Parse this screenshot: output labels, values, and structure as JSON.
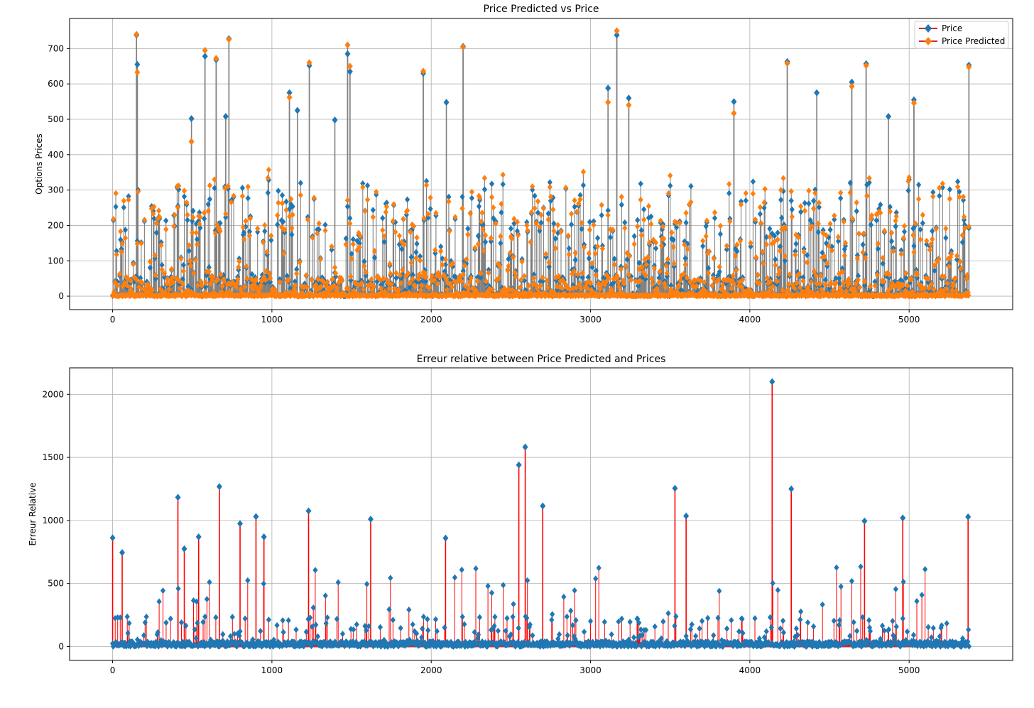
{
  "colors": {
    "price": "#1f77b4",
    "predicted": "#ff7f0e",
    "stem_top": "#808080",
    "stem_bottom": "#ff0000",
    "baseline": "#d62728",
    "grid": "#b0b0b0"
  },
  "chart_data": [
    {
      "type": "scatter",
      "subtype": "stem",
      "title": "Price Predicted vs Price",
      "xlabel": "",
      "ylabel": "Options Prices",
      "xlim": [
        -270,
        5650
      ],
      "ylim": [
        -38,
        785
      ],
      "xticks": [
        0,
        1000,
        2000,
        3000,
        4000,
        5000
      ],
      "xtick_labels": [
        "0",
        "1000",
        "2000",
        "3000",
        "4000",
        "5000"
      ],
      "yticks": [
        0,
        100,
        200,
        300,
        400,
        500,
        600,
        700
      ],
      "ytick_labels": [
        "0",
        "100",
        "200",
        "300",
        "400",
        "500",
        "600",
        "700"
      ],
      "grid": true,
      "legend": {
        "position": "top-right",
        "entries": [
          "Price",
          "Price Predicted"
        ]
      },
      "n_points": 5380,
      "series": [
        {
          "name": "Price",
          "marker": "diamond",
          "highlights": [
            {
              "x": 150,
              "y": 738
            },
            {
              "x": 155,
              "y": 655
            },
            {
              "x": 580,
              "y": 678
            },
            {
              "x": 650,
              "y": 668
            },
            {
              "x": 730,
              "y": 728
            },
            {
              "x": 710,
              "y": 508
            },
            {
              "x": 495,
              "y": 502
            },
            {
              "x": 1110,
              "y": 575
            },
            {
              "x": 1160,
              "y": 525
            },
            {
              "x": 1235,
              "y": 652
            },
            {
              "x": 1395,
              "y": 498
            },
            {
              "x": 1475,
              "y": 685
            },
            {
              "x": 1490,
              "y": 635
            },
            {
              "x": 1950,
              "y": 630
            },
            {
              "x": 2095,
              "y": 548
            },
            {
              "x": 2200,
              "y": 706
            },
            {
              "x": 3110,
              "y": 588
            },
            {
              "x": 3165,
              "y": 738
            },
            {
              "x": 3240,
              "y": 560
            },
            {
              "x": 3900,
              "y": 550
            },
            {
              "x": 4235,
              "y": 663
            },
            {
              "x": 4420,
              "y": 575
            },
            {
              "x": 4640,
              "y": 605
            },
            {
              "x": 4730,
              "y": 657
            },
            {
              "x": 4870,
              "y": 508
            },
            {
              "x": 5030,
              "y": 555
            },
            {
              "x": 5375,
              "y": 653
            }
          ]
        },
        {
          "name": "Price Predicted",
          "marker": "diamond",
          "highlights": [
            {
              "x": 150,
              "y": 740
            },
            {
              "x": 155,
              "y": 633
            },
            {
              "x": 580,
              "y": 695
            },
            {
              "x": 650,
              "y": 672
            },
            {
              "x": 730,
              "y": 726
            },
            {
              "x": 495,
              "y": 437
            },
            {
              "x": 1110,
              "y": 562
            },
            {
              "x": 1235,
              "y": 660
            },
            {
              "x": 1475,
              "y": 710
            },
            {
              "x": 1490,
              "y": 650
            },
            {
              "x": 1950,
              "y": 636
            },
            {
              "x": 2200,
              "y": 704
            },
            {
              "x": 3110,
              "y": 548
            },
            {
              "x": 3165,
              "y": 750
            },
            {
              "x": 3240,
              "y": 540
            },
            {
              "x": 3900,
              "y": 517
            },
            {
              "x": 4235,
              "y": 658
            },
            {
              "x": 4640,
              "y": 593
            },
            {
              "x": 4730,
              "y": 652
            },
            {
              "x": 5030,
              "y": 546
            },
            {
              "x": 5375,
              "y": 648
            }
          ]
        }
      ]
    },
    {
      "type": "scatter",
      "subtype": "stem",
      "title": "Erreur relative between Price Predicted and Prices",
      "xlabel": "",
      "ylabel": "Erreur Relative",
      "xlim": [
        -270,
        5650
      ],
      "ylim": [
        -110,
        2210
      ],
      "xticks": [
        0,
        1000,
        2000,
        3000,
        4000,
        5000
      ],
      "xtick_labels": [
        "0",
        "1000",
        "2000",
        "3000",
        "4000",
        "5000"
      ],
      "yticks": [
        0,
        500,
        1000,
        1500,
        2000
      ],
      "ytick_labels": [
        "0",
        "500",
        "1000",
        "1500",
        "2000"
      ],
      "grid": true,
      "n_points": 5380,
      "series": [
        {
          "name": "Erreur Relative",
          "marker": "diamond",
          "highlights": [
            {
              "x": 0,
              "y": 862
            },
            {
              "x": 60,
              "y": 745
            },
            {
              "x": 410,
              "y": 1183
            },
            {
              "x": 450,
              "y": 775
            },
            {
              "x": 540,
              "y": 870
            },
            {
              "x": 670,
              "y": 1268
            },
            {
              "x": 800,
              "y": 975
            },
            {
              "x": 900,
              "y": 1030
            },
            {
              "x": 950,
              "y": 870
            },
            {
              "x": 1230,
              "y": 1075
            },
            {
              "x": 1620,
              "y": 1010
            },
            {
              "x": 2090,
              "y": 860
            },
            {
              "x": 2550,
              "y": 1440
            },
            {
              "x": 2590,
              "y": 1582
            },
            {
              "x": 2700,
              "y": 1115
            },
            {
              "x": 3530,
              "y": 1255
            },
            {
              "x": 3600,
              "y": 1035
            },
            {
              "x": 4140,
              "y": 2100
            },
            {
              "x": 4260,
              "y": 1250
            },
            {
              "x": 4720,
              "y": 995
            },
            {
              "x": 4960,
              "y": 1020
            },
            {
              "x": 5370,
              "y": 1028
            }
          ]
        }
      ]
    }
  ]
}
